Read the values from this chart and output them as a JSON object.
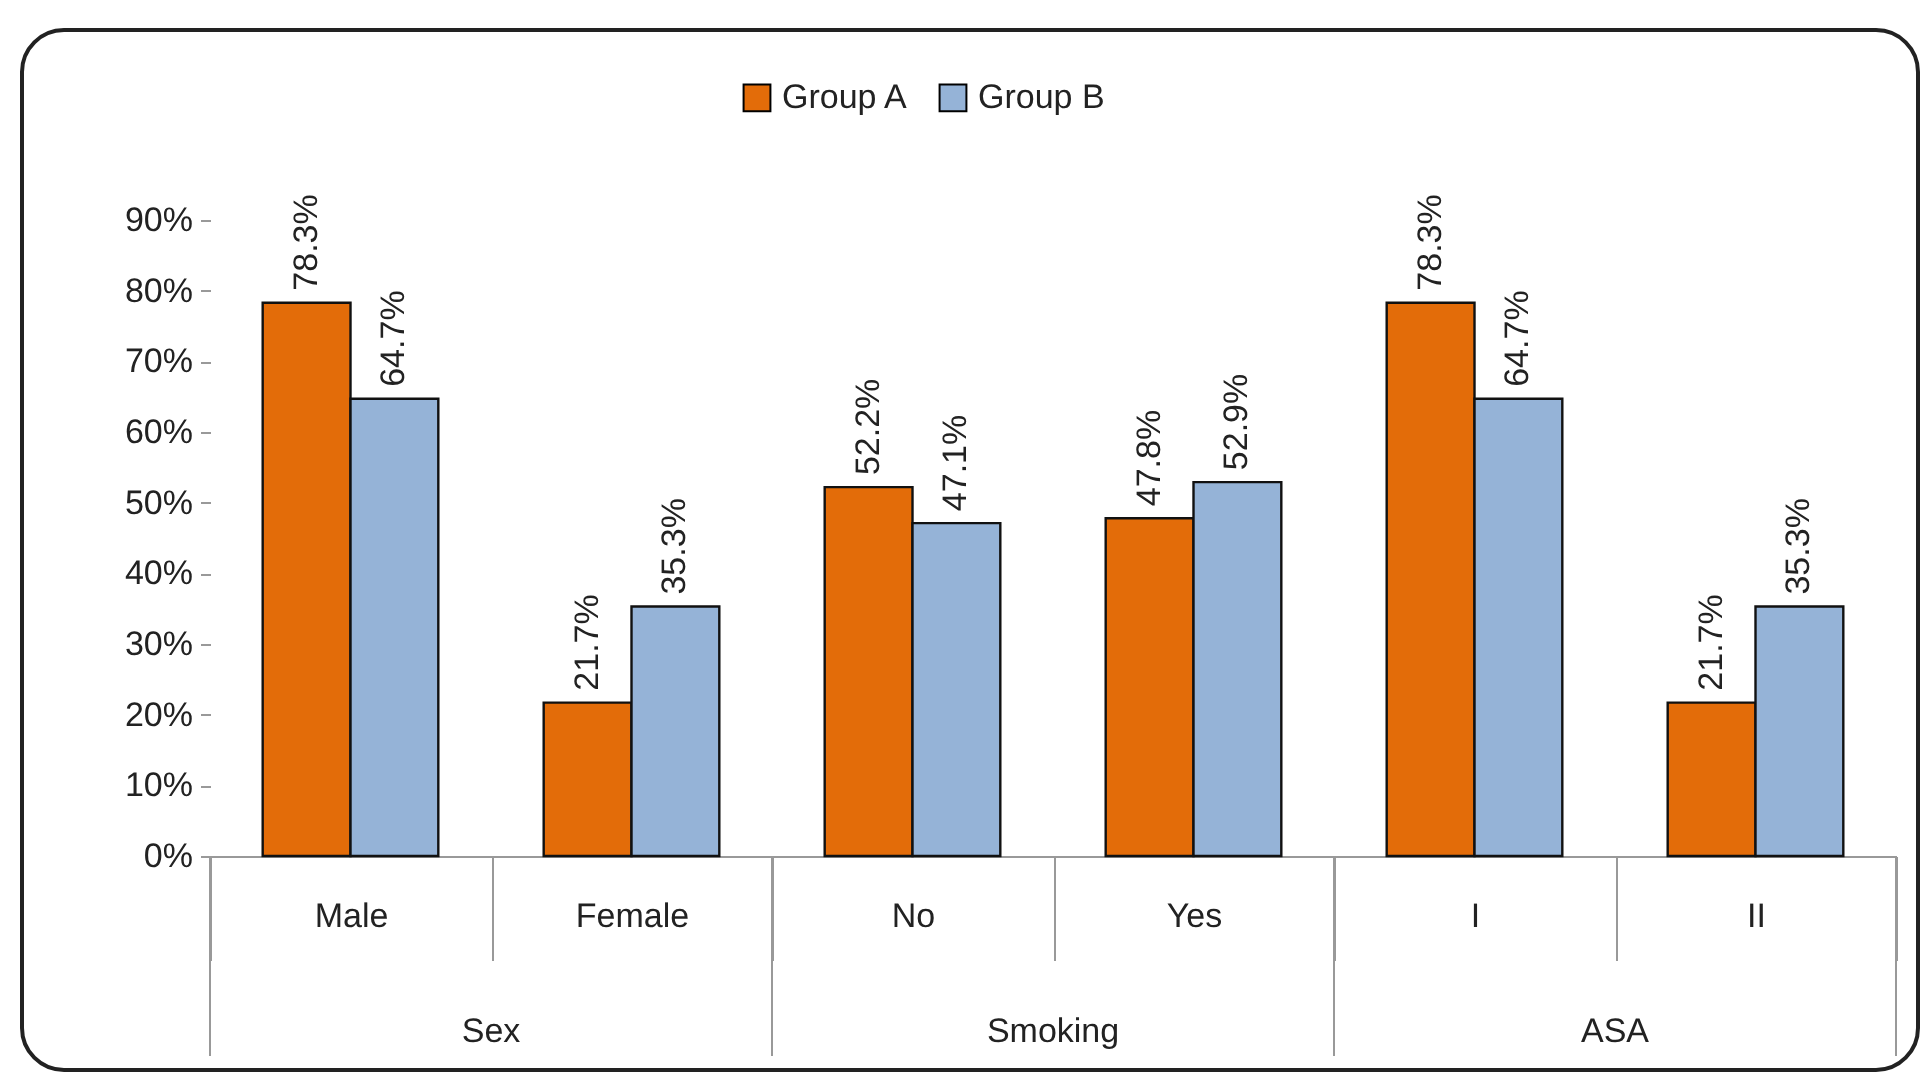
{
  "chart_data": {
    "type": "bar",
    "categories": [
      "Male",
      "Female",
      "No",
      "Yes",
      "I",
      "II"
    ],
    "annotations": [
      "Sex",
      "Smoking",
      "ASA"
    ],
    "series": [
      {
        "name": "Group A",
        "color": "#e36c09",
        "values": [
          78.3,
          21.7,
          52.2,
          47.8,
          78.3,
          21.7
        ],
        "value_labels": [
          "78.3%",
          "21.7%",
          "52.2%",
          "47.8%",
          "78.3%",
          "21.7%"
        ]
      },
      {
        "name": "Group B",
        "color": "#95b3d7",
        "values": [
          64.7,
          35.3,
          47.1,
          52.9,
          64.7,
          35.3
        ],
        "value_labels": [
          "64.7%",
          "35.3%",
          "47.1%",
          "52.9%",
          "64.7%",
          "35.3%"
        ]
      }
    ],
    "ylim": [
      0,
      90
    ],
    "yticks": [
      {
        "value": 0,
        "label": "0%"
      },
      {
        "value": 10,
        "label": "10%"
      },
      {
        "value": 20,
        "label": "20%"
      },
      {
        "value": 30,
        "label": "30%"
      },
      {
        "value": 40,
        "label": "40%"
      },
      {
        "value": 50,
        "label": "50%"
      },
      {
        "value": 60,
        "label": "60%"
      },
      {
        "value": 70,
        "label": "70%"
      },
      {
        "value": 80,
        "label": "80%"
      },
      {
        "value": 90,
        "label": "90%"
      }
    ],
    "grid": false,
    "legend": "top"
  }
}
